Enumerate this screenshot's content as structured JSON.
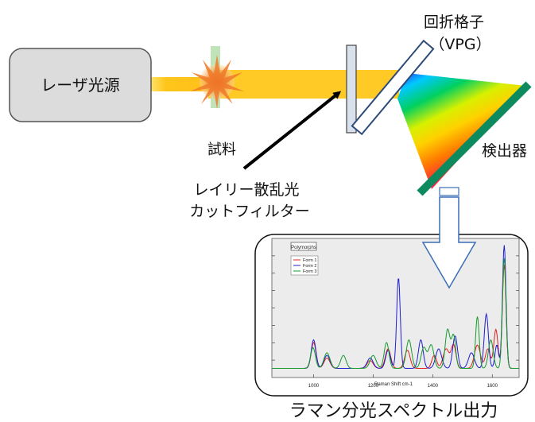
{
  "labels": {
    "laser": "レーザ光源",
    "sample": "試料",
    "grating_line1": "回折格子",
    "grating_line2": "（VPG）",
    "detector": "検出器",
    "filter_line1": "レイリー散乱光",
    "filter_line2": "カットフィルター",
    "output": "ラマン分光スペクトル出力"
  },
  "colors": {
    "beam": "#ffc61a",
    "laser_box": "#dcdcdc",
    "detector": "#0d8a5e",
    "filter": "#d9e2ec",
    "arrow_outline": "#3b6fb6"
  },
  "chart_data": {
    "type": "line",
    "title": "Polymorphs",
    "xlabel": "Raman Shift cm-1",
    "ylabel": "",
    "x_ticks": [
      1000,
      1200,
      1400,
      1600
    ],
    "xlim": [
      860,
      1690
    ],
    "ylim": [
      0,
      100
    ],
    "grid": false,
    "legend_position": "top-left",
    "series": [
      {
        "name": "Form 1",
        "color": "#e0201b",
        "peaks": [
          [
            1000,
            20,
            8
          ],
          [
            1045,
            8,
            10
          ],
          [
            1190,
            6,
            10
          ],
          [
            1250,
            15,
            9
          ],
          [
            1315,
            14,
            9
          ],
          [
            1405,
            10,
            8
          ],
          [
            1445,
            15,
            10
          ],
          [
            1470,
            18,
            8
          ],
          [
            1550,
            18,
            10
          ],
          [
            1585,
            15,
            8
          ],
          [
            1612,
            30,
            7
          ],
          [
            1640,
            80,
            6
          ]
        ]
      },
      {
        "name": "Form 2",
        "color": "#1f1fd0",
        "peaks": [
          [
            1000,
            22,
            8
          ],
          [
            1045,
            10,
            10
          ],
          [
            1190,
            8,
            10
          ],
          [
            1250,
            14,
            8
          ],
          [
            1285,
            70,
            6
          ],
          [
            1360,
            22,
            8
          ],
          [
            1420,
            15,
            10
          ],
          [
            1475,
            25,
            8
          ],
          [
            1530,
            12,
            10
          ],
          [
            1580,
            42,
            7
          ],
          [
            1615,
            18,
            6
          ],
          [
            1640,
            95,
            6
          ]
        ]
      },
      {
        "name": "Form 3",
        "color": "#169a2e",
        "peaks": [
          [
            998,
            16,
            8
          ],
          [
            1045,
            12,
            10
          ],
          [
            1100,
            10,
            9
          ],
          [
            1200,
            10,
            10
          ],
          [
            1245,
            20,
            8
          ],
          [
            1320,
            22,
            9
          ],
          [
            1370,
            16,
            9
          ],
          [
            1395,
            18,
            9
          ],
          [
            1450,
            30,
            8
          ],
          [
            1470,
            25,
            7
          ],
          [
            1550,
            40,
            6
          ],
          [
            1595,
            22,
            8
          ],
          [
            1640,
            85,
            6
          ]
        ]
      }
    ]
  }
}
